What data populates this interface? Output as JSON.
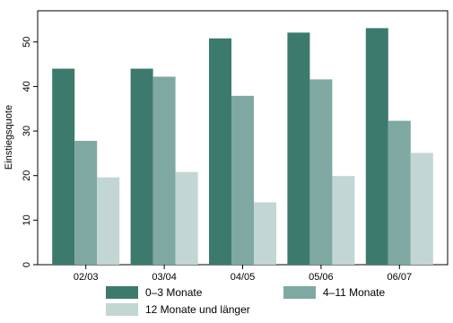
{
  "chart_data": {
    "type": "bar",
    "categories": [
      "02/03",
      "03/04",
      "04/05",
      "05/06",
      "06/07"
    ],
    "series": [
      {
        "name": "0–3 Monate",
        "values": [
          44.0,
          44.0,
          50.8,
          52.1,
          53.1
        ],
        "color": "#3d7a6e"
      },
      {
        "name": "4–11 Monate",
        "values": [
          27.8,
          42.2,
          37.9,
          41.6,
          32.3
        ],
        "color": "#7fa8a2"
      },
      {
        "name": "12 Monate und länger",
        "values": [
          19.6,
          20.8,
          14.0,
          19.9,
          25.1
        ],
        "color": "#c2d6d3"
      }
    ],
    "ylabel": "Einstiegsquote",
    "yticks": [
      0,
      10,
      20,
      30,
      40,
      50
    ],
    "ylim": [
      0,
      57
    ],
    "grid": false,
    "legend": "bottom"
  }
}
